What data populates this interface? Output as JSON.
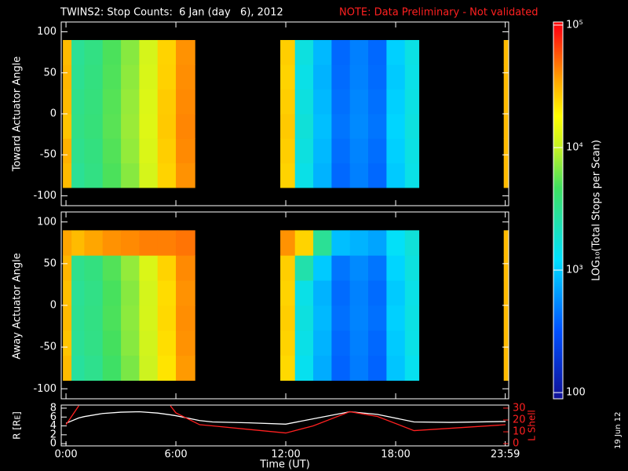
{
  "title": "TWINS2: Stop Counts:  6 Jan (day   6), 2012",
  "note": "NOTE: Data Preliminary - Not validated",
  "stamp": "19 Jun 12",
  "chart_data": [
    {
      "type": "heatmap",
      "ylabel": "Toward Actuator Angle",
      "xlim": [
        -0.26,
        24.17
      ],
      "xticks": [
        0,
        6,
        12,
        18,
        23.983
      ],
      "ylim": [
        -112,
        112
      ],
      "yticks": [
        -100,
        -50,
        0,
        50,
        100
      ],
      "y_edges": [
        -90,
        -60,
        -30,
        0,
        30,
        60,
        90
      ],
      "log_color": true,
      "zlim": [
        89,
        106000
      ],
      "colorbar": {
        "label": "LOG₁₀(Total Stops per Scan)",
        "ticks": [
          {
            "value": 100000,
            "label": "10⁵"
          },
          {
            "value": 10000,
            "label": "10⁴"
          },
          {
            "value": 1000,
            "label": "10³"
          },
          100
        ]
      },
      "blocks": [
        {
          "x_edges": [
            -0.17,
            0.3,
            1,
            2,
            3,
            4,
            5,
            6,
            7.04
          ],
          "z": [
            [
              30000,
              32000,
              28000,
              30000,
              31000,
              30000
            ],
            [
              3000,
              3200,
              3400,
              3300,
              3100,
              3000
            ],
            [
              3500,
              3600,
              3800,
              3700,
              3600,
              3500
            ],
            [
              5000,
              5200,
              5400,
              5300,
              5100,
              5000
            ],
            [
              7000,
              7500,
              7800,
              7600,
              7300,
              7000
            ],
            [
              12000,
              12500,
              13000,
              12800,
              12300,
              12000
            ],
            [
              25000,
              26000,
              27000,
              26500,
              25500,
              25000
            ],
            [
              40000,
              42000,
              43000,
              42000,
              41000,
              40000
            ]
          ]
        },
        {
          "x_edges": [
            11.7,
            12.5,
            13.5,
            14.5,
            15.5,
            16.5,
            17.5,
            18.5,
            19.27
          ],
          "z": [
            [
              25000,
              26000,
              27000,
              26000,
              25000,
              26000
            ],
            [
              1500,
              1600,
              1700,
              1600,
              1500,
              1600
            ],
            [
              800,
              850,
              900,
              850,
              800,
              850
            ],
            [
              400,
              420,
              450,
              430,
              410,
              400
            ],
            [
              500,
              520,
              550,
              530,
              510,
              500
            ],
            [
              400,
              420,
              450,
              430,
              410,
              400
            ],
            [
              1000,
              1050,
              1100,
              1050,
              1000,
              1050
            ],
            [
              1500,
              1550,
              1600,
              1550,
              1500,
              1550
            ]
          ]
        },
        {
          "x_edges": [
            23.9,
            24.17
          ],
          "z": [
            [
              30000,
              30000,
              30000,
              30000,
              30000,
              30000
            ]
          ]
        }
      ]
    },
    {
      "type": "heatmap",
      "ylabel": "Away Actuator Angle",
      "xlim": [
        -0.26,
        24.17
      ],
      "xticks": [
        0,
        6,
        12,
        18,
        23.983
      ],
      "ylim": [
        -112,
        112
      ],
      "yticks": [
        -100,
        -50,
        0,
        50,
        100
      ],
      "y_edges": [
        -90,
        -60,
        -30,
        0,
        30,
        60,
        90
      ],
      "log_color": true,
      "zlim": [
        89,
        106000
      ],
      "blocks": [
        {
          "x_edges": [
            -0.17,
            0.3,
            1,
            2,
            3,
            4,
            5,
            6,
            7.04
          ],
          "z": [
            [
              30000,
              28000,
              30000,
              29000,
              31000,
              35000
            ],
            [
              2800,
              3000,
              3100,
              3000,
              3200,
              30000
            ],
            [
              3200,
              3400,
              3500,
              3400,
              3600,
              35000
            ],
            [
              4500,
              4800,
              5000,
              4900,
              5200,
              40000
            ],
            [
              6500,
              7000,
              7200,
              7000,
              7500,
              42000
            ],
            [
              11000,
              11500,
              12000,
              11800,
              12500,
              45000
            ],
            [
              22000,
              23000,
              24000,
              23500,
              25000,
              45000
            ],
            [
              38000,
              40000,
              41000,
              40000,
              42000,
              48000
            ]
          ]
        },
        {
          "x_edges": [
            11.7,
            12.5,
            13.5,
            14.5,
            15.5,
            16.5,
            17.5,
            18.5,
            19.27
          ],
          "z": [
            [
              24000,
              25000,
              26000,
              25000,
              26000,
              40000
            ],
            [
              1400,
              1500,
              1600,
              1500,
              2500,
              25000
            ],
            [
              750,
              800,
              850,
              800,
              1000,
              3000
            ],
            [
              380,
              400,
              430,
              410,
              450,
              900
            ],
            [
              480,
              500,
              520,
              510,
              550,
              800
            ],
            [
              380,
              400,
              430,
              410,
              450,
              700
            ],
            [
              950,
              1000,
              1050,
              1000,
              1100,
              1300
            ],
            [
              1400,
              1500,
              1550,
              1500,
              1600,
              1700
            ]
          ]
        },
        {
          "x_edges": [
            23.9,
            24.17
          ],
          "z": [
            [
              30000,
              30000,
              30000,
              30000,
              30000,
              30000
            ]
          ]
        }
      ]
    },
    {
      "type": "line",
      "xlabel": "Time (UT)",
      "ylabel": "R [Rᴇ]",
      "y2label": "L Shell",
      "xlim": [
        -0.26,
        24.17
      ],
      "xticks": [
        {
          "value": 0,
          "label": "0:00"
        },
        {
          "value": 6,
          "label": "6:00"
        },
        {
          "value": 12,
          "label": "12:00"
        },
        {
          "value": 18,
          "label": "18:00"
        },
        {
          "value": 23.983,
          "label": "23:59"
        }
      ],
      "ylim": [
        -0.5,
        8.7
      ],
      "yticks": [
        0,
        2,
        4,
        6,
        8
      ],
      "y2lim": [
        -1.9,
        32.6
      ],
      "y2ticks": [
        0,
        10,
        20,
        30
      ],
      "x": [
        0,
        0.7,
        1,
        2,
        3,
        4,
        5,
        5.7,
        6,
        7.3,
        8,
        10,
        12,
        13.5,
        15.5,
        17,
        19,
        21,
        24
      ],
      "series": [
        {
          "color": "#ffffff",
          "values": [
            4.6,
            5.8,
            6.1,
            6.8,
            7.1,
            7.2,
            6.9,
            6.5,
            6.3,
            5.2,
            4.9,
            4.7,
            4.4,
            5.6,
            7.2,
            6.6,
            4.9,
            4.8,
            5.0
          ]
        },
        {
          "color": "#ff2020",
          "axis": "y2",
          "values": [
            16,
            32,
            null,
            null,
            null,
            null,
            null,
            32,
            26,
            16,
            15,
            12,
            9,
            15,
            27,
            23,
            11,
            13,
            16
          ]
        }
      ]
    }
  ]
}
